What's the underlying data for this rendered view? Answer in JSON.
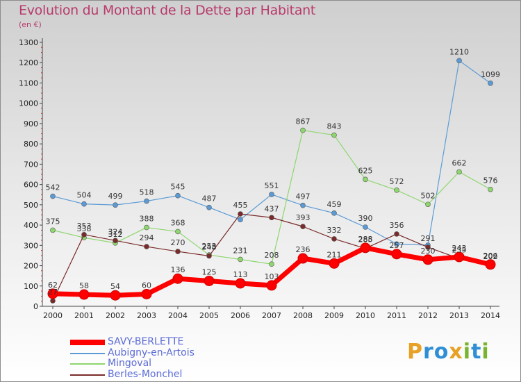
{
  "title": "Evolution du Montant de la Dette par Habitant",
  "subtitle": "(en €)",
  "brand": {
    "letters": [
      "P",
      "r",
      "o",
      "x",
      "i",
      "t",
      "i"
    ]
  },
  "chart_data": {
    "type": "line",
    "x": [
      "2000",
      "2001",
      "2002",
      "2003",
      "2004",
      "2005",
      "2006",
      "2007",
      "2008",
      "2009",
      "2010",
      "2011",
      "2012",
      "2013",
      "2014"
    ],
    "ylim": [
      0,
      1300
    ],
    "yticks": [
      0,
      100,
      200,
      300,
      400,
      500,
      600,
      700,
      800,
      900,
      1000,
      1100,
      1200,
      1300
    ],
    "grid": false,
    "legend_position": "bottom-left",
    "series": [
      {
        "name": "Aubigny-en-Artois",
        "color": "#5b9bd5",
        "width": 1.2,
        "values": [
          542,
          504,
          499,
          518,
          545,
          487,
          427,
          551,
          497,
          459,
          390,
          307,
          301,
          1210,
          1099
        ],
        "labels": [
          "542",
          "504",
          "499",
          "518",
          "545",
          "487",
          "",
          "551",
          "497",
          "459",
          "390",
          "",
          "",
          "1210",
          "1099"
        ]
      },
      {
        "name": "Mingoval",
        "color": "#8ed66e",
        "width": 1.2,
        "values": [
          375,
          338,
          312,
          388,
          368,
          253,
          231,
          208,
          867,
          843,
          625,
          572,
          502,
          662,
          576
        ],
        "labels": [
          "375",
          "338",
          "312",
          "388",
          "368",
          "253",
          "231",
          "208",
          "867",
          "843",
          "625",
          "572",
          "502",
          "662",
          "576"
        ]
      },
      {
        "name": "Berles-Monchel",
        "color": "#7a2a2a",
        "width": 1.2,
        "values": [
          27,
          353,
          324,
          294,
          270,
          248,
          455,
          437,
          393,
          332,
          285,
          356,
          291,
          235,
          202
        ],
        "labels": [
          "27",
          "353",
          "324",
          "294",
          "270",
          "248",
          "455",
          "437",
          "393",
          "332",
          "285",
          "356",
          "291",
          "235",
          "202"
        ]
      },
      {
        "name": "SAVY-BERLETTE",
        "color": "#ff0000",
        "width": 7,
        "values": [
          62,
          58,
          54,
          60,
          136,
          125,
          113,
          103,
          236,
          211,
          288,
          257,
          230,
          243,
          206
        ],
        "labels": [
          "62",
          "58",
          "54",
          "60",
          "136",
          "125",
          "113",
          "103",
          "236",
          "211",
          "288",
          "257",
          "230",
          "243",
          "206"
        ]
      }
    ]
  }
}
